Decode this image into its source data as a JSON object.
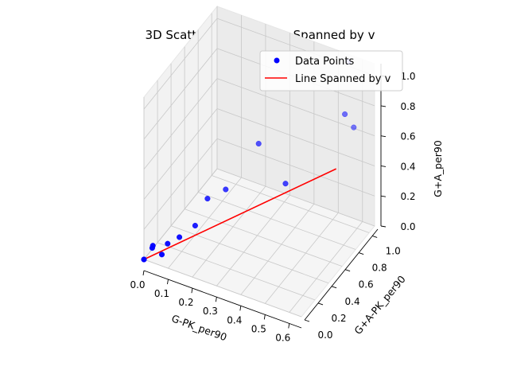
{
  "chart_data": {
    "type": "scatter",
    "title": "3D Scatterplot with Line Spanned by v",
    "xlabel": "G-PK_per90",
    "ylabel": "G+A-PK_per90",
    "zlabel": "G+A_per90",
    "xticks": [
      "0.0",
      "0.1",
      "0.2",
      "0.3",
      "0.4",
      "0.5",
      "0.6"
    ],
    "yticks": [
      "0.0",
      "0.2",
      "0.4",
      "0.6",
      "0.8",
      "1.0"
    ],
    "zticks": [
      "0.0",
      "0.2",
      "0.4",
      "0.6",
      "0.8",
      "1.0"
    ],
    "grid": true,
    "legend_position": "top-right",
    "series": [
      {
        "name": "Data Points",
        "kind": "scatter",
        "color": "#0000ff",
        "points": [
          [
            0.0,
            0.0,
            0.0
          ],
          [
            0.0,
            0.0,
            0.0
          ],
          [
            0.02,
            0.05,
            0.06
          ],
          [
            0.02,
            0.06,
            0.07
          ],
          [
            0.07,
            0.1,
            0.09
          ],
          [
            0.06,
            0.05,
            0.04
          ],
          [
            0.11,
            0.13,
            0.14
          ],
          [
            0.15,
            0.22,
            0.19
          ],
          [
            0.17,
            0.33,
            0.32
          ],
          [
            0.22,
            0.42,
            0.36
          ],
          [
            0.3,
            0.62,
            0.6
          ],
          [
            0.45,
            0.48,
            0.5
          ],
          [
            0.6,
            0.82,
            0.86
          ],
          [
            0.62,
            0.88,
            0.75
          ],
          [
            0.55,
            1.05,
            1.05
          ]
        ]
      },
      {
        "name": "Line Spanned by v",
        "kind": "line",
        "color": "#ff0000",
        "points": [
          [
            0.0,
            0.0,
            0.0
          ],
          [
            0.62,
            0.62,
            0.62
          ]
        ]
      }
    ],
    "xlim": [
      0.0,
      0.65
    ],
    "ylim": [
      0.0,
      1.08
    ],
    "zlim": [
      0.0,
      1.08
    ]
  }
}
